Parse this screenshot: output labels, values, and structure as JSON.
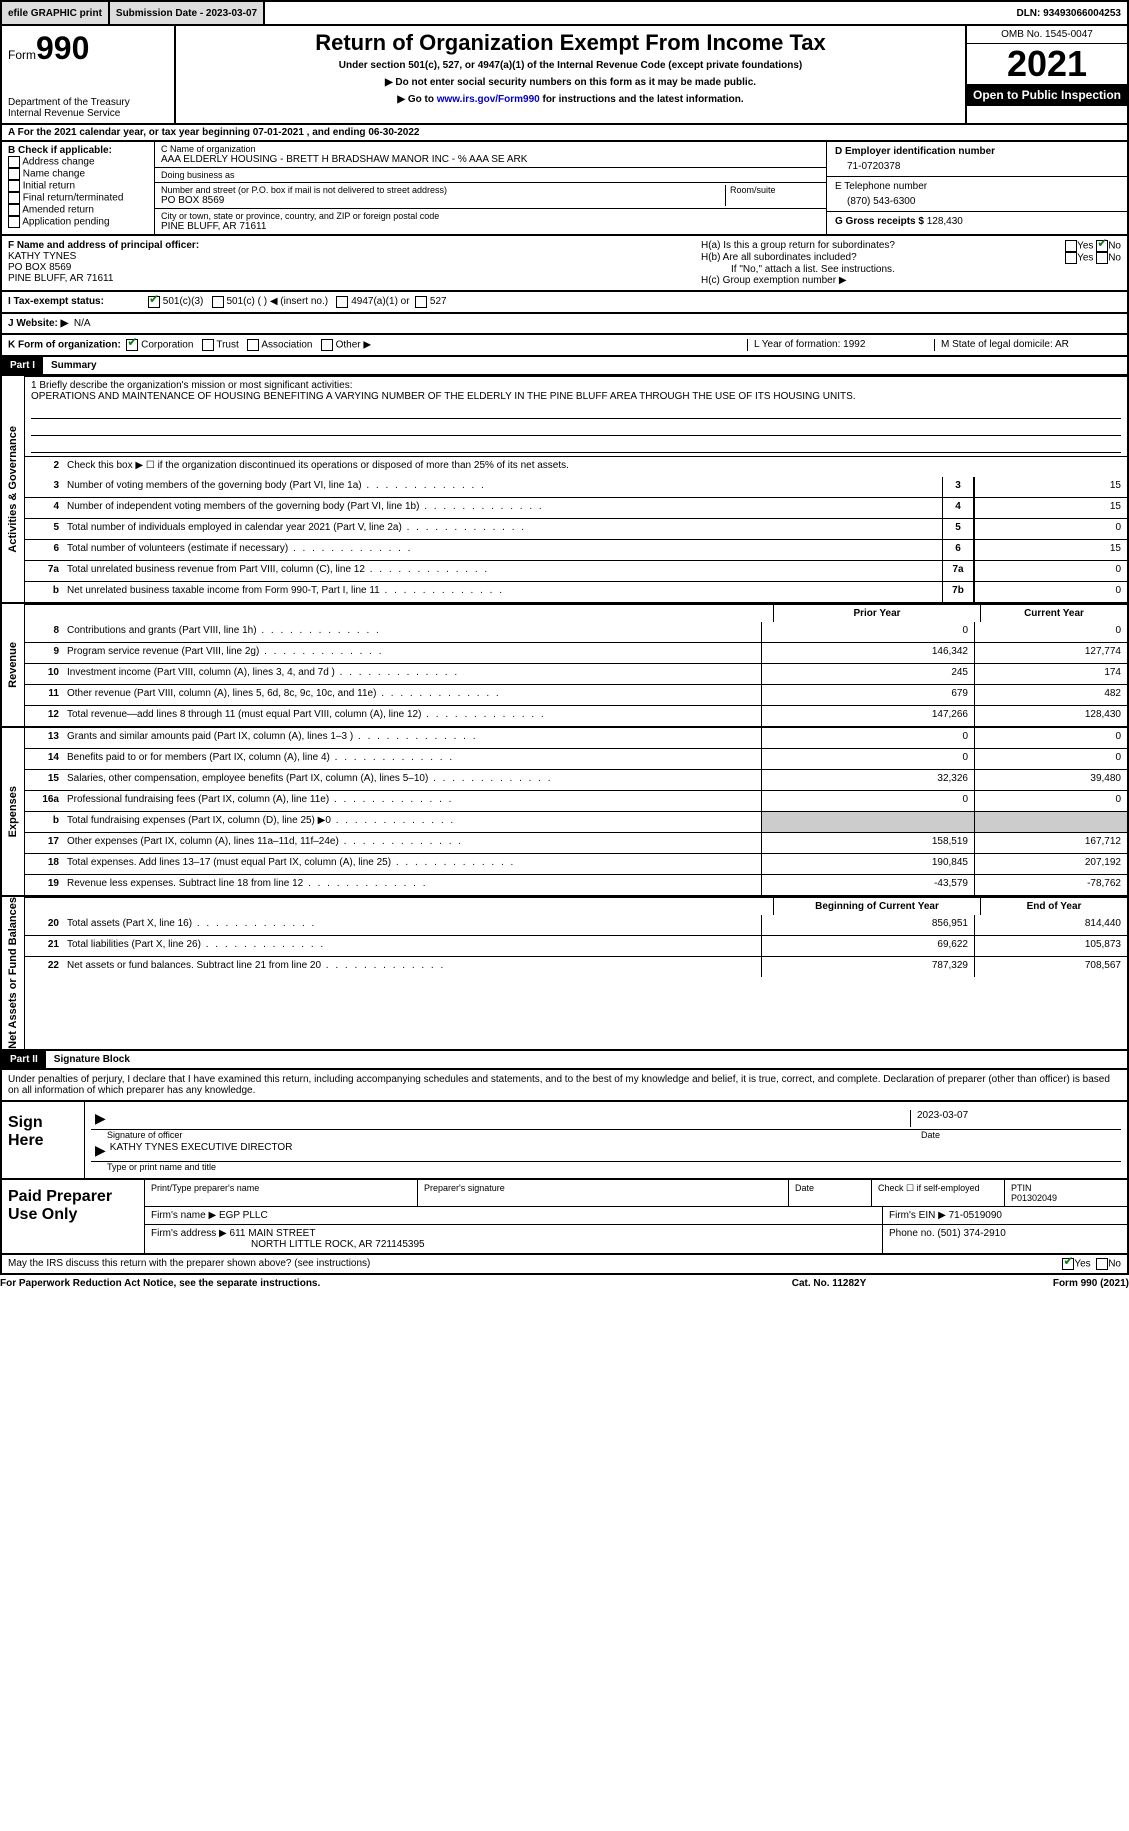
{
  "top": {
    "efile": "efile GRAPHIC print",
    "submission": "Submission Date - 2023-03-07",
    "dln": "DLN: 93493066004253"
  },
  "header": {
    "form_prefix": "Form",
    "form_num": "990",
    "dept": "Department of the Treasury",
    "irs": "Internal Revenue Service",
    "title": "Return of Organization Exempt From Income Tax",
    "subtitle": "Under section 501(c), 527, or 4947(a)(1) of the Internal Revenue Code (except private foundations)",
    "warn": "▶ Do not enter social security numbers on this form as it may be made public.",
    "goto_pre": "▶ Go to ",
    "goto_link": "www.irs.gov/Form990",
    "goto_post": " for instructions and the latest information.",
    "omb": "OMB No. 1545-0047",
    "year": "2021",
    "open": "Open to Public Inspection"
  },
  "sectionA": {
    "text": "A For the 2021 calendar year, or tax year beginning 07-01-2021    , and ending 06-30-2022"
  },
  "boxB": {
    "title": "B Check if applicable:",
    "opts": [
      "Address change",
      "Name change",
      "Initial return",
      "Final return/terminated",
      "Amended return",
      "Application pending"
    ]
  },
  "boxC": {
    "name_label": "C Name of organization",
    "name": "AAA ELDERLY HOUSING - BRETT H BRADSHAW MANOR INC - % AAA SE ARK",
    "dba_label": "Doing business as",
    "dba": "",
    "addr_label": "Number and street (or P.O. box if mail is not delivered to street address)",
    "room_label": "Room/suite",
    "addr": "PO BOX 8569",
    "city_label": "City or town, state or province, country, and ZIP or foreign postal code",
    "city": "PINE BLUFF, AR  71611"
  },
  "boxDE": {
    "d_label": "D Employer identification number",
    "d_val": "71-0720378",
    "e_label": "E Telephone number",
    "e_val": "(870) 543-6300",
    "g_label": "G Gross receipts $",
    "g_val": "128,430"
  },
  "fRow": {
    "f_label": "F Name and address of principal officer:",
    "f_name": "KATHY TYNES",
    "f_addr1": "PO BOX 8569",
    "f_addr2": "PINE BLUFF, AR  71611",
    "ha": "H(a)  Is this a group return for subordinates?",
    "hb": "H(b)  Are all subordinates included?",
    "hb_note": "If \"No,\" attach a list. See instructions.",
    "hc": "H(c)  Group exemption number ▶"
  },
  "status": {
    "i": "I   Tax-exempt status:",
    "c3": "501(c)(3)",
    "c": "501(c) (  ) ◀ (insert no.)",
    "a1": "4947(a)(1) or",
    "s527": "527"
  },
  "website": {
    "label": "J   Website: ▶",
    "val": "N/A"
  },
  "kRow": {
    "k": "K Form of organization:",
    "corp": "Corporation",
    "trust": "Trust",
    "assoc": "Association",
    "other": "Other ▶",
    "l": "L Year of formation: 1992",
    "m": "M State of legal domicile: AR"
  },
  "part1": {
    "header": "Part I",
    "title": "Summary"
  },
  "mission": {
    "label": "1   Briefly describe the organization's mission or most significant activities:",
    "text": "OPERATIONS AND MAINTENANCE OF HOUSING BENEFITING A VARYING NUMBER OF THE ELDERLY IN THE PINE BLUFF AREA THROUGH THE USE OF ITS HOUSING UNITS."
  },
  "line2": "Check this box ▶ ☐  if the organization discontinued its operations or disposed of more than 25% of its net assets.",
  "gov_lines": [
    {
      "n": "3",
      "d": "Number of voting members of the governing body (Part VI, line 1a)",
      "bl": "3",
      "v": "15"
    },
    {
      "n": "4",
      "d": "Number of independent voting members of the governing body (Part VI, line 1b)",
      "bl": "4",
      "v": "15"
    },
    {
      "n": "5",
      "d": "Total number of individuals employed in calendar year 2021 (Part V, line 2a)",
      "bl": "5",
      "v": "0"
    },
    {
      "n": "6",
      "d": "Total number of volunteers (estimate if necessary)",
      "bl": "6",
      "v": "15"
    },
    {
      "n": "7a",
      "d": "Total unrelated business revenue from Part VIII, column (C), line 12",
      "bl": "7a",
      "v": "0"
    },
    {
      "n": "b",
      "d": "Net unrelated business taxable income from Form 990-T, Part I, line 11",
      "bl": "7b",
      "v": "0"
    }
  ],
  "col_headers": {
    "py": "Prior Year",
    "cy": "Current Year"
  },
  "rev_lines": [
    {
      "n": "8",
      "d": "Contributions and grants (Part VIII, line 1h)",
      "py": "0",
      "cy": "0"
    },
    {
      "n": "9",
      "d": "Program service revenue (Part VIII, line 2g)",
      "py": "146,342",
      "cy": "127,774"
    },
    {
      "n": "10",
      "d": "Investment income (Part VIII, column (A), lines 3, 4, and 7d )",
      "py": "245",
      "cy": "174"
    },
    {
      "n": "11",
      "d": "Other revenue (Part VIII, column (A), lines 5, 6d, 8c, 9c, 10c, and 11e)",
      "py": "679",
      "cy": "482"
    },
    {
      "n": "12",
      "d": "Total revenue—add lines 8 through 11 (must equal Part VIII, column (A), line 12)",
      "py": "147,266",
      "cy": "128,430"
    }
  ],
  "exp_lines": [
    {
      "n": "13",
      "d": "Grants and similar amounts paid (Part IX, column (A), lines 1–3 )",
      "py": "0",
      "cy": "0"
    },
    {
      "n": "14",
      "d": "Benefits paid to or for members (Part IX, column (A), line 4)",
      "py": "0",
      "cy": "0"
    },
    {
      "n": "15",
      "d": "Salaries, other compensation, employee benefits (Part IX, column (A), lines 5–10)",
      "py": "32,326",
      "cy": "39,480"
    },
    {
      "n": "16a",
      "d": "Professional fundraising fees (Part IX, column (A), line 11e)",
      "py": "0",
      "cy": "0"
    },
    {
      "n": "b",
      "d": "Total fundraising expenses (Part IX, column (D), line 25) ▶0",
      "py": "shaded",
      "cy": "shaded"
    },
    {
      "n": "17",
      "d": "Other expenses (Part IX, column (A), lines 11a–11d, 11f–24e)",
      "py": "158,519",
      "cy": "167,712"
    },
    {
      "n": "18",
      "d": "Total expenses. Add lines 13–17 (must equal Part IX, column (A), line 25)",
      "py": "190,845",
      "cy": "207,192"
    },
    {
      "n": "19",
      "d": "Revenue less expenses. Subtract line 18 from line 12",
      "py": "-43,579",
      "cy": "-78,762"
    }
  ],
  "na_headers": {
    "py": "Beginning of Current Year",
    "cy": "End of Year"
  },
  "na_lines": [
    {
      "n": "20",
      "d": "Total assets (Part X, line 16)",
      "py": "856,951",
      "cy": "814,440"
    },
    {
      "n": "21",
      "d": "Total liabilities (Part X, line 26)",
      "py": "69,622",
      "cy": "105,873"
    },
    {
      "n": "22",
      "d": "Net assets or fund balances. Subtract line 21 from line 20",
      "py": "787,329",
      "cy": "708,567"
    }
  ],
  "side_tabs": {
    "gov": "Activities & Governance",
    "rev": "Revenue",
    "exp": "Expenses",
    "na": "Net Assets or Fund Balances"
  },
  "part2": {
    "header": "Part II",
    "title": "Signature Block"
  },
  "perjury": "Under penalties of perjury, I declare that I have examined this return, including accompanying schedules and statements, and to the best of my knowledge and belief, it is true, correct, and complete. Declaration of preparer (other than officer) is based on all information of which preparer has any knowledge.",
  "sign": {
    "here": "Sign Here",
    "sig_officer": "Signature of officer",
    "date": "2023-03-07",
    "date_label": "Date",
    "name": "KATHY TYNES  EXECUTIVE DIRECTOR",
    "name_label": "Type or print name and title"
  },
  "preparer": {
    "title": "Paid Preparer Use Only",
    "h_print": "Print/Type preparer's name",
    "h_sig": "Preparer's signature",
    "h_date": "Date",
    "h_self": "Check ☐ if self-employed",
    "h_ptin": "PTIN",
    "ptin": "P01302049",
    "firm_name_l": "Firm's name    ▶",
    "firm_name": "EGP PLLC",
    "firm_ein_l": "Firm's EIN ▶",
    "firm_ein": "71-0519090",
    "firm_addr_l": "Firm's address ▶",
    "firm_addr": "611 MAIN STREET",
    "firm_addr2": "NORTH LITTLE ROCK, AR  721145395",
    "phone_l": "Phone no.",
    "phone": "(501) 374-2910"
  },
  "discuss": "May the IRS discuss this return with the preparer shown above? (see instructions)",
  "yes": "Yes",
  "no": "No",
  "footer": {
    "left": "For Paperwork Reduction Act Notice, see the separate instructions.",
    "mid": "Cat. No. 11282Y",
    "right": "Form 990 (2021)"
  }
}
